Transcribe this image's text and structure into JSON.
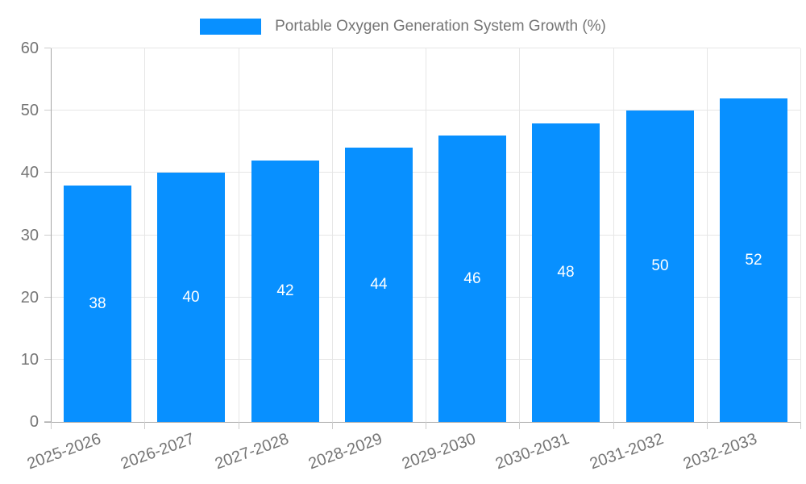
{
  "chart_data": {
    "type": "bar",
    "title": "Portable Oxygen Generation System Growth (%)",
    "xlabel": "",
    "ylabel": "",
    "categories": [
      "2025-2026",
      "2026-2027",
      "2027-2028",
      "2028-2029",
      "2029-2030",
      "2030-2031",
      "2031-2032",
      "2032-2033"
    ],
    "values": [
      38,
      40,
      42,
      44,
      46,
      48,
      50,
      52
    ],
    "ylim": [
      0,
      60
    ],
    "ytick_step": 10,
    "yticks": [
      0,
      10,
      20,
      30,
      40,
      50,
      60
    ],
    "grid": true,
    "legend_position": "top-center",
    "bar_labels_inside": true,
    "colors": {
      "bar": "#0890ff",
      "grid": "#e6e6e6",
      "axis": "#a6a6a6",
      "tick": "#cccccc",
      "text": "#757575",
      "bar_label": "#ffffff",
      "background": "#ffffff"
    }
  }
}
